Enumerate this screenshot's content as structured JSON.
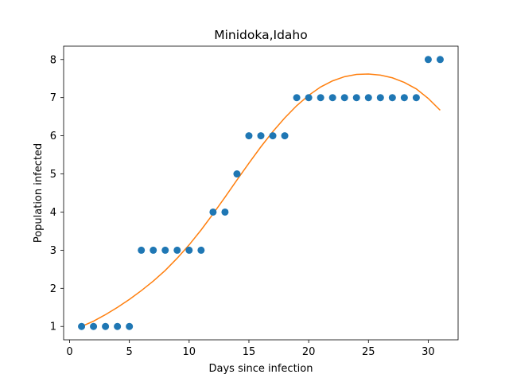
{
  "chart_data": {
    "type": "scatter",
    "title": "Minidoka,Idaho",
    "xlabel": "Days since infection",
    "ylabel": "Population infected",
    "xlim": [
      -0.5,
      32.5
    ],
    "ylim": [
      0.65,
      8.35
    ],
    "xticks": [
      0,
      5,
      10,
      15,
      20,
      25,
      30
    ],
    "yticks": [
      1,
      2,
      3,
      4,
      5,
      6,
      7,
      8
    ],
    "grid": false,
    "series": [
      {
        "kind": "scatter",
        "color": "#1f77b4",
        "x": [
          1,
          2,
          3,
          4,
          5,
          6,
          7,
          8,
          9,
          10,
          11,
          12,
          13,
          14,
          15,
          16,
          17,
          18,
          19,
          20,
          21,
          22,
          23,
          24,
          25,
          26,
          27,
          28,
          29,
          30,
          31
        ],
        "y": [
          1,
          1,
          1,
          1,
          1,
          3,
          3,
          3,
          3,
          3,
          3,
          4,
          4,
          5,
          6,
          6,
          6,
          6,
          7,
          7,
          7,
          7,
          7,
          7,
          7,
          7,
          7,
          7,
          7,
          8,
          8
        ]
      },
      {
        "kind": "line",
        "color": "#ff7f0e",
        "x": [
          1,
          2,
          3,
          4,
          5,
          6,
          7,
          8,
          9,
          10,
          11,
          12,
          13,
          14,
          15,
          16,
          17,
          18,
          19,
          20,
          21,
          22,
          23,
          24,
          25,
          26,
          27,
          28,
          29,
          30,
          31
        ],
        "y": [
          1.0,
          1.14,
          1.31,
          1.5,
          1.71,
          1.94,
          2.19,
          2.47,
          2.79,
          3.14,
          3.53,
          3.95,
          4.39,
          4.84,
          5.28,
          5.71,
          6.11,
          6.47,
          6.79,
          7.06,
          7.28,
          7.44,
          7.55,
          7.61,
          7.62,
          7.59,
          7.52,
          7.4,
          7.23,
          6.98,
          6.67
        ]
      }
    ]
  }
}
